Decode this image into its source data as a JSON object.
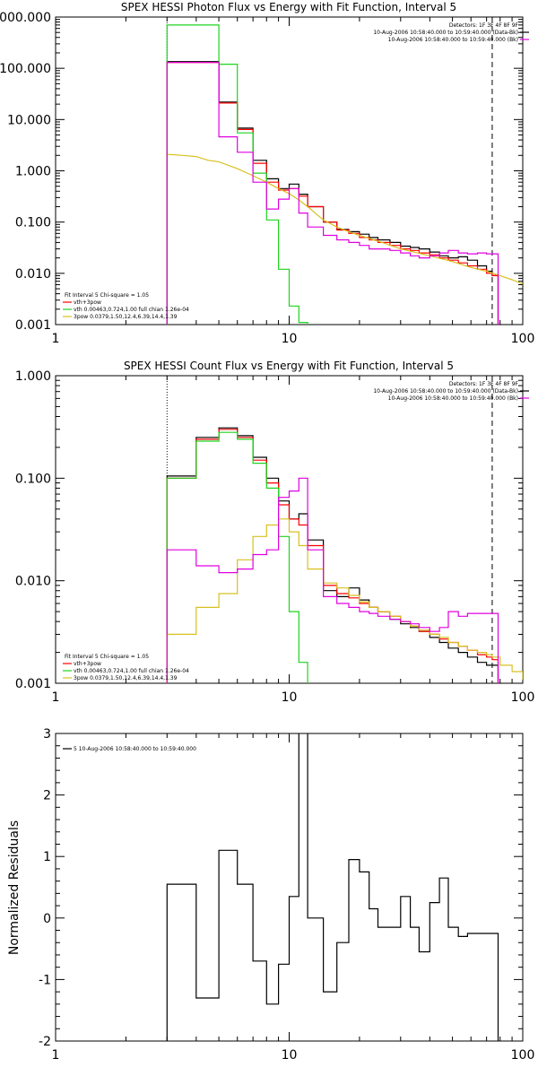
{
  "colors": {
    "black": "#000000",
    "red": "#ff0000",
    "green": "#1ed41e",
    "magenta": "#e000e0",
    "yellow": "#d8c020"
  },
  "chart_data": [
    {
      "type": "line",
      "title": "SPEX HESSI Photon Flux vs Energy with Fit Function, Interval 5",
      "x_scale": "log",
      "y_scale": "log",
      "xlim": [
        1,
        100
      ],
      "ylim": [
        0.001,
        1000
      ],
      "x_tick_labels": [
        "1",
        "10",
        "100"
      ],
      "y_tick_labels": [
        "0.001",
        "0.010",
        "0.100",
        "1.000",
        "10.000",
        "100.000",
        "1000.000"
      ],
      "legend_right": [
        "Detectors: 1F 3F 4F 8F 9F",
        "10-Aug-2006 10:58:40.000 to 10:59:40.000 (Data-Bk)",
        "10-Aug-2006 10:58:40.000 to 10:59:40.000 (Bk)"
      ],
      "legend_left": [
        "Fit Interval 5   Chi-square = 1.05",
        "vth+3pow",
        "vth 0.00463,0.724,1.00  full chian 1.26e-04",
        "3pow 0.0379,1.50,12.4,6.39,14.4,1.39"
      ],
      "vline_dotted_x": 3.0,
      "vline_dashed_x": 74,
      "series": [
        {
          "name": "(Data-Bk)",
          "color": "black",
          "step": true,
          "x": [
            3.0,
            4.0,
            5.0,
            6.0,
            7.0,
            8.0,
            9.0,
            10.0,
            11.0,
            12.0,
            14.0,
            16.0,
            18.0,
            20.0,
            22.0,
            24.0,
            27.0,
            30.0,
            33.0,
            36.0,
            40.0,
            44.0,
            48.0,
            53.0,
            58.0,
            64.0,
            70.0,
            74.0
          ],
          "y": [
            135,
            135,
            22,
            6.8,
            1.6,
            0.7,
            0.45,
            0.55,
            0.35,
            0.2,
            0.1,
            0.072,
            0.065,
            0.058,
            0.05,
            0.045,
            0.04,
            0.034,
            0.032,
            0.03,
            0.026,
            0.022,
            0.02,
            0.021,
            0.018,
            0.014,
            0.011,
            0.009
          ]
        },
        {
          "name": "vth+3pow",
          "color": "red",
          "step": true,
          "x": [
            3.0,
            4.0,
            5.0,
            6.0,
            7.0,
            8.0,
            9.0,
            10.0,
            11.0,
            12.0,
            14.0,
            16.0,
            18.0,
            20.0,
            22.0,
            24.0,
            27.0,
            30.0,
            33.0,
            36.0,
            40.0,
            44.0,
            48.0,
            53.0,
            58.0,
            64.0,
            70.0,
            74.0
          ],
          "y": [
            130,
            130,
            21,
            6.4,
            1.4,
            0.6,
            0.42,
            0.45,
            0.32,
            0.2,
            0.1,
            0.07,
            0.06,
            0.05,
            0.045,
            0.04,
            0.035,
            0.03,
            0.028,
            0.025,
            0.023,
            0.02,
            0.018,
            0.016,
            0.014,
            0.012,
            0.01,
            0.009
          ]
        },
        {
          "name": "vth",
          "color": "green",
          "step": true,
          "x": [
            3.0,
            4.0,
            5.0,
            6.0,
            7.0,
            8.0,
            9.0,
            10.0,
            11.0,
            12.0
          ],
          "y": [
            700,
            700,
            120,
            5.5,
            0.9,
            0.11,
            0.012,
            0.0023,
            0.0011,
            0.00085
          ]
        },
        {
          "name": "3pow",
          "color": "yellow",
          "step": false,
          "x": [
            3.0,
            3.5,
            4.0,
            4.5,
            5.0,
            6.0,
            7.0,
            8.0,
            9.0,
            10.0,
            11.0,
            12.0,
            14.0,
            16.0,
            18.0,
            20.0,
            25.0,
            30.0,
            40.0,
            50.0,
            60.0,
            70.0,
            80.0,
            90.0,
            100.0
          ],
          "y": [
            2.1,
            2.0,
            1.9,
            1.6,
            1.5,
            1.1,
            0.8,
            0.6,
            0.45,
            0.36,
            0.27,
            0.2,
            0.11,
            0.08,
            0.065,
            0.055,
            0.04,
            0.03,
            0.022,
            0.017,
            0.013,
            0.011,
            0.009,
            0.0075,
            0.0062
          ]
        },
        {
          "name": "(Bk)",
          "color": "magenta",
          "step": true,
          "x": [
            3.0,
            4.0,
            5.0,
            6.0,
            7.0,
            8.0,
            9.0,
            10.0,
            11.0,
            12.0,
            14.0,
            16.0,
            18.0,
            20.0,
            22.0,
            24.0,
            27.0,
            30.0,
            33.0,
            36.0,
            40.0,
            44.0,
            48.0,
            53.0,
            58.0,
            64.0,
            70.0,
            74.0
          ],
          "y": [
            130,
            130,
            4.6,
            2.3,
            0.6,
            0.18,
            0.28,
            0.45,
            0.15,
            0.08,
            0.055,
            0.045,
            0.04,
            0.035,
            0.03,
            0.03,
            0.028,
            0.025,
            0.022,
            0.02,
            0.022,
            0.025,
            0.028,
            0.025,
            0.024,
            0.025,
            0.024,
            0.024
          ]
        }
      ]
    },
    {
      "type": "line",
      "title": "SPEX HESSI Count Flux vs Energy with Fit Function, Interval 5",
      "x_scale": "log",
      "y_scale": "log",
      "xlim": [
        1,
        100
      ],
      "ylim": [
        0.001,
        1.0
      ],
      "x_tick_labels": [
        "1",
        "10",
        "100"
      ],
      "y_tick_labels": [
        "0.001",
        "0.010",
        "0.100",
        "1.000"
      ],
      "legend_right": [
        "Detectors: 1F 3F 4F 8F 9F",
        "10-Aug-2006 10:58:40.000 to 10:59:40.000 (Data-Bk)",
        "10-Aug-2006 10:58:40.000 to 10:59:40.000 (Bk)"
      ],
      "legend_left": [
        "Fit Interval 5   Chi-square = 1.05",
        "vth+3pow",
        "vth 0.00463,0.724,1.00  full chian 1.26e-04",
        "3pow 0.0379,1.50,12.4,6.39,14.4,1.39"
      ],
      "vline_dotted_x": 3.0,
      "vline_dashed_x": 74,
      "series": [
        {
          "name": "(Data-Bk)",
          "color": "black",
          "step": true,
          "x": [
            3.0,
            4.0,
            5.0,
            6.0,
            7.0,
            8.0,
            9.0,
            10.0,
            11.0,
            12.0,
            14.0,
            16.0,
            18.0,
            20.0,
            22.0,
            24.0,
            27.0,
            30.0,
            33.0,
            36.0,
            40.0,
            44.0,
            48.0,
            53.0,
            58.0,
            64.0,
            70.0,
            74.0
          ],
          "y": [
            0.105,
            0.25,
            0.31,
            0.26,
            0.16,
            0.1,
            0.06,
            0.04,
            0.045,
            0.025,
            0.008,
            0.007,
            0.0085,
            0.0065,
            0.0055,
            0.005,
            0.0042,
            0.0038,
            0.0035,
            0.0032,
            0.0028,
            0.0025,
            0.0022,
            0.002,
            0.0018,
            0.0016,
            0.0015,
            0.0015
          ]
        },
        {
          "name": "vth+3pow",
          "color": "red",
          "step": true,
          "x": [
            3.0,
            4.0,
            5.0,
            6.0,
            7.0,
            8.0,
            9.0,
            10.0,
            11.0,
            12.0,
            14.0,
            16.0,
            18.0,
            20.0,
            22.0,
            24.0,
            27.0,
            30.0,
            33.0,
            36.0,
            40.0,
            44.0,
            48.0,
            53.0,
            58.0,
            64.0,
            70.0,
            74.0
          ],
          "y": [
            0.1,
            0.24,
            0.3,
            0.25,
            0.15,
            0.09,
            0.055,
            0.04,
            0.035,
            0.022,
            0.009,
            0.0075,
            0.0068,
            0.006,
            0.0055,
            0.005,
            0.0045,
            0.004,
            0.0036,
            0.0032,
            0.003,
            0.0027,
            0.0025,
            0.0023,
            0.0021,
            0.0019,
            0.0018,
            0.0017
          ]
        },
        {
          "name": "vth",
          "color": "green",
          "step": true,
          "x": [
            3.0,
            4.0,
            5.0,
            6.0,
            7.0,
            8.0,
            9.0,
            10.0,
            11.0,
            12.0
          ],
          "y": [
            0.1,
            0.23,
            0.28,
            0.24,
            0.14,
            0.08,
            0.027,
            0.005,
            0.0016,
            0.0009
          ]
        },
        {
          "name": "3pow",
          "color": "yellow",
          "step": true,
          "x": [
            3.0,
            4.0,
            5.0,
            6.0,
            7.0,
            8.0,
            9.0,
            10.0,
            11.0,
            12.0,
            14.0,
            16.0,
            18.0,
            20.0,
            22.0,
            24.0,
            27.0,
            30.0,
            33.0,
            36.0,
            40.0,
            44.0,
            48.0,
            53.0,
            58.0,
            64.0,
            70.0,
            74.0,
            80.0,
            90.0,
            100.0
          ],
          "y": [
            0.003,
            0.0055,
            0.0075,
            0.016,
            0.027,
            0.035,
            0.04,
            0.03,
            0.022,
            0.013,
            0.0095,
            0.0085,
            0.0072,
            0.0062,
            0.0055,
            0.005,
            0.0045,
            0.004,
            0.0036,
            0.0033,
            0.003,
            0.0028,
            0.0025,
            0.0023,
            0.0021,
            0.002,
            0.0019,
            0.0018,
            0.0015,
            0.0013,
            0.0011
          ]
        },
        {
          "name": "(Bk)",
          "color": "magenta",
          "step": true,
          "x": [
            3.0,
            4.0,
            5.0,
            6.0,
            7.0,
            8.0,
            9.0,
            10.0,
            11.0,
            12.0,
            14.0,
            16.0,
            18.0,
            20.0,
            22.0,
            24.0,
            27.0,
            30.0,
            33.0,
            36.0,
            40.0,
            44.0,
            48.0,
            53.0,
            58.0,
            64.0,
            70.0,
            74.0
          ],
          "y": [
            0.02,
            0.014,
            0.012,
            0.013,
            0.018,
            0.02,
            0.065,
            0.075,
            0.1,
            0.02,
            0.007,
            0.006,
            0.0055,
            0.005,
            0.0048,
            0.0045,
            0.0042,
            0.004,
            0.0038,
            0.0035,
            0.0032,
            0.0035,
            0.005,
            0.0045,
            0.0048,
            0.0048,
            0.0048,
            0.0048
          ]
        }
      ]
    },
    {
      "type": "line",
      "title": "",
      "ylabel": "Normalized Residuals",
      "x_scale": "log",
      "y_scale": "linear",
      "xlim": [
        1,
        100
      ],
      "ylim": [
        -2,
        3
      ],
      "x_tick_labels": [
        "1",
        "10",
        "100"
      ],
      "y_tick_labels": [
        "-2",
        "-1",
        "0",
        "1",
        "2",
        "3"
      ],
      "legend_left": [
        "5  10-Aug-2006 10:58:40.000 to 10:59:40.000"
      ],
      "series": [
        {
          "name": "5",
          "color": "black",
          "step": true,
          "x": [
            3.0,
            4.0,
            5.0,
            6.0,
            7.0,
            8.0,
            9.0,
            10.0,
            11.0,
            12.0,
            14.0,
            16.0,
            18.0,
            20.0,
            22.0,
            24.0,
            27.0,
            30.0,
            33.0,
            36.0,
            40.0,
            44.0,
            48.0,
            53.0,
            58.0,
            64.0,
            70.0,
            74.0
          ],
          "y": [
            0.55,
            -1.3,
            1.1,
            0.55,
            -0.7,
            -1.4,
            -0.75,
            0.35,
            3.5,
            0.0,
            -1.2,
            -0.4,
            0.95,
            0.75,
            0.15,
            -0.15,
            -0.15,
            0.35,
            -0.15,
            -0.55,
            0.25,
            0.65,
            -0.15,
            -0.3,
            -0.25,
            -0.25,
            -0.25,
            -0.25
          ]
        }
      ]
    }
  ]
}
